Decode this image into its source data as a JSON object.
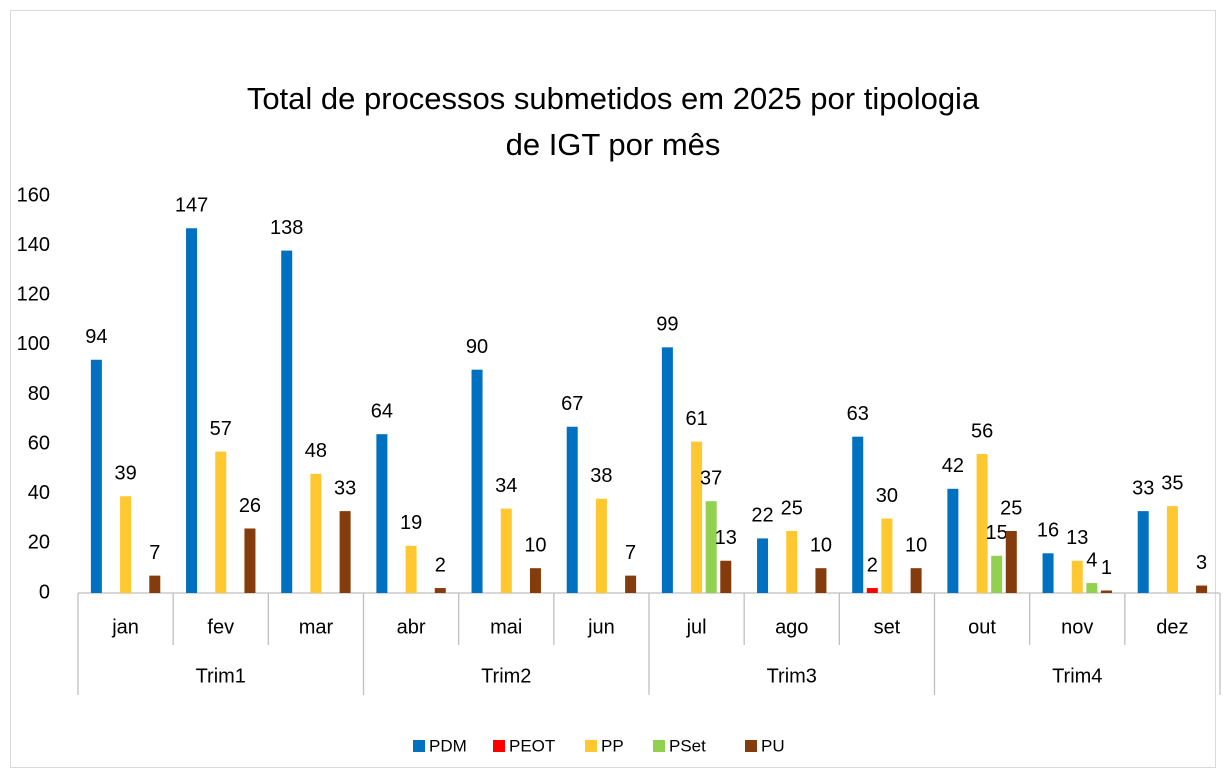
{
  "chart_data": {
    "type": "bar",
    "title": "Total de processos submetidos em 2025 por tipologia de IGT por mês",
    "categories": [
      "jan",
      "fev",
      "mar",
      "abr",
      "mai",
      "jun",
      "jul",
      "ago",
      "set",
      "out",
      "nov",
      "dez"
    ],
    "groups": [
      "Trim1",
      "Trim2",
      "Trim3",
      "Trim4"
    ],
    "series": [
      {
        "name": "PDM",
        "color": "#0070c0",
        "values": [
          94,
          147,
          138,
          64,
          90,
          67,
          99,
          22,
          63,
          42,
          16,
          33
        ]
      },
      {
        "name": "PEOT",
        "color": "#ff0000",
        "values": [
          null,
          null,
          null,
          null,
          null,
          null,
          null,
          null,
          2,
          null,
          null,
          null
        ]
      },
      {
        "name": "PP",
        "color": "#ffc830",
        "values": [
          39,
          57,
          48,
          19,
          34,
          38,
          61,
          25,
          30,
          56,
          13,
          35
        ]
      },
      {
        "name": "PSet",
        "color": "#92d050",
        "values": [
          null,
          null,
          null,
          null,
          null,
          null,
          37,
          null,
          null,
          15,
          4,
          null
        ]
      },
      {
        "name": "PU",
        "color": "#843c0c",
        "values": [
          7,
          26,
          33,
          2,
          10,
          7,
          13,
          10,
          10,
          25,
          1,
          3
        ]
      }
    ],
    "ylim": [
      0,
      160
    ],
    "yticks": [
      0,
      20,
      40,
      60,
      80,
      100,
      120,
      140,
      160
    ],
    "grid": false,
    "legend": "bottom"
  }
}
